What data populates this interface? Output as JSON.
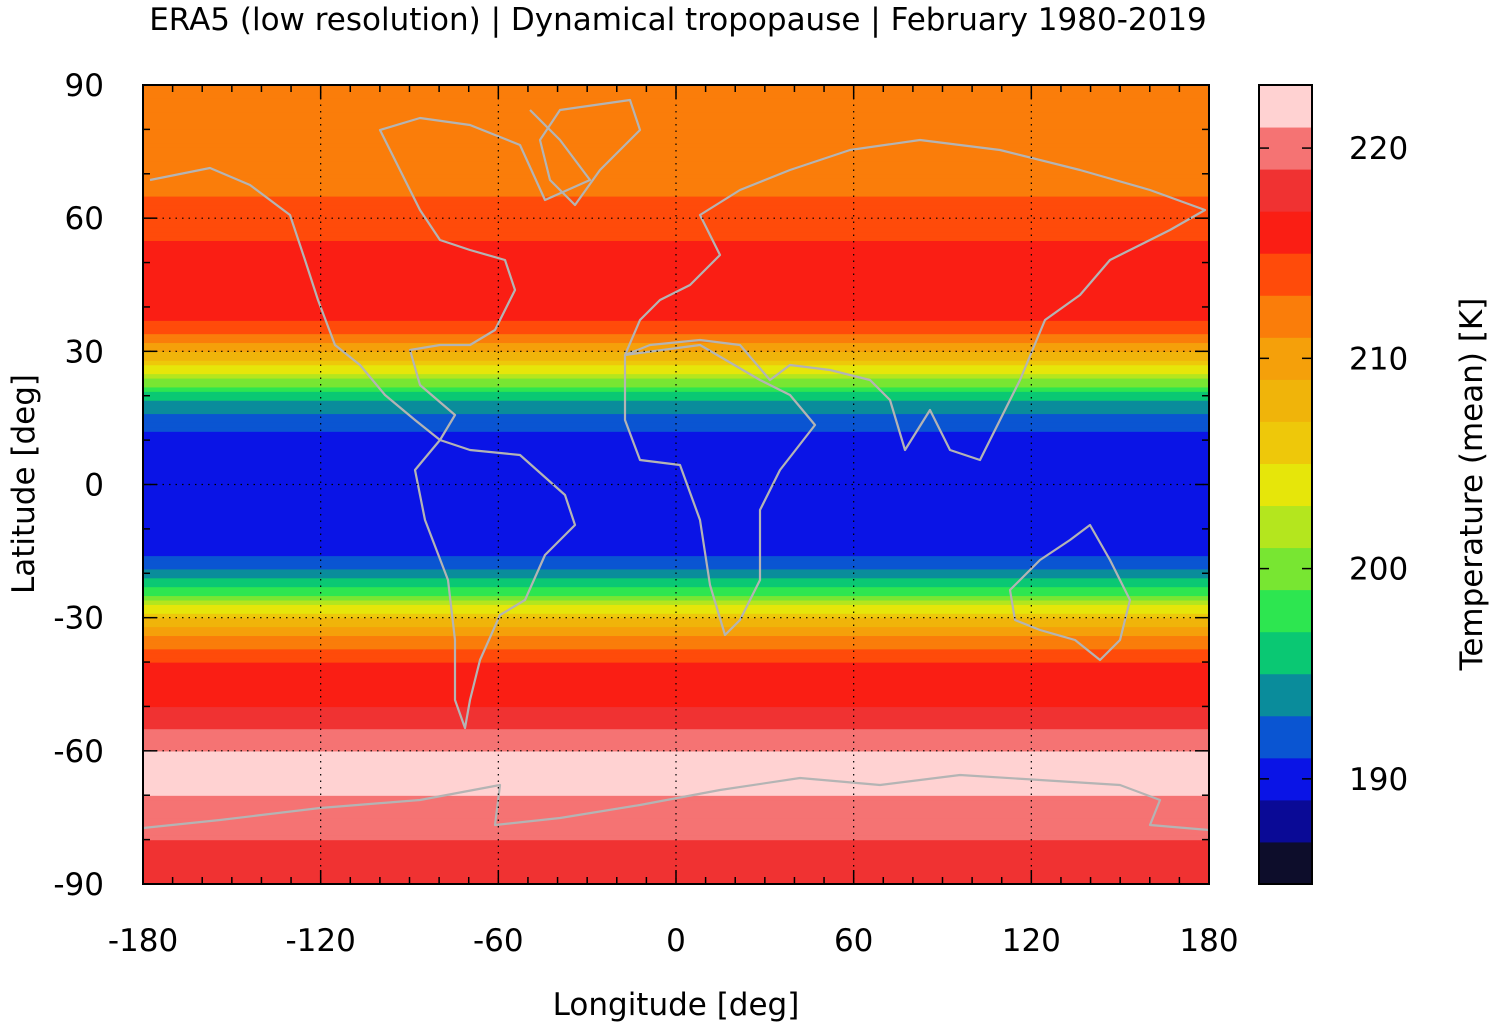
{
  "chart_data": {
    "type": "heatmap",
    "title": "ERA5 (low resolution) | Dynamical tropopause | February 1980-2019",
    "xlabel": "Longitude [deg]",
    "ylabel": "Latitude [deg]",
    "xlim": [
      -180,
      180
    ],
    "ylim": [
      -90,
      90
    ],
    "x_ticks": [
      -180,
      -120,
      -60,
      0,
      60,
      120,
      180
    ],
    "y_ticks": [
      -90,
      -60,
      -30,
      0,
      30,
      60,
      90
    ],
    "grid": true,
    "colorbar": {
      "label": "Temperature (mean) [K]",
      "range": [
        185,
        223
      ],
      "ticks": [
        190,
        200,
        210,
        220
      ],
      "level_step": 2,
      "colors": [
        "#0d0d2b",
        "#0a0a96",
        "#0a14e6",
        "#0a55d2",
        "#0a8c9b",
        "#0ac873",
        "#2de650",
        "#78e632",
        "#b4e61e",
        "#e6e60a",
        "#eec80a",
        "#f0b40a",
        "#f5a00a",
        "#fa7d0a",
        "#ff4b0a",
        "#fa1e14",
        "#f03232",
        "#f57373",
        "#ffd2d2"
      ]
    },
    "zonal_mean_profile": {
      "lat": [
        -90,
        -80,
        -70,
        -65,
        -60,
        -50,
        -40,
        -35,
        -30,
        -25,
        -20,
        -15,
        -10,
        0,
        10,
        15,
        20,
        25,
        30,
        35,
        40,
        50,
        60,
        70,
        80,
        90
      ],
      "temperature_K": [
        217,
        219,
        221,
        222,
        221,
        217,
        215,
        212,
        207,
        199,
        194,
        190,
        189,
        189,
        190,
        192,
        196,
        203,
        209,
        214,
        216,
        216,
        214,
        212,
        212,
        213
      ]
    }
  }
}
